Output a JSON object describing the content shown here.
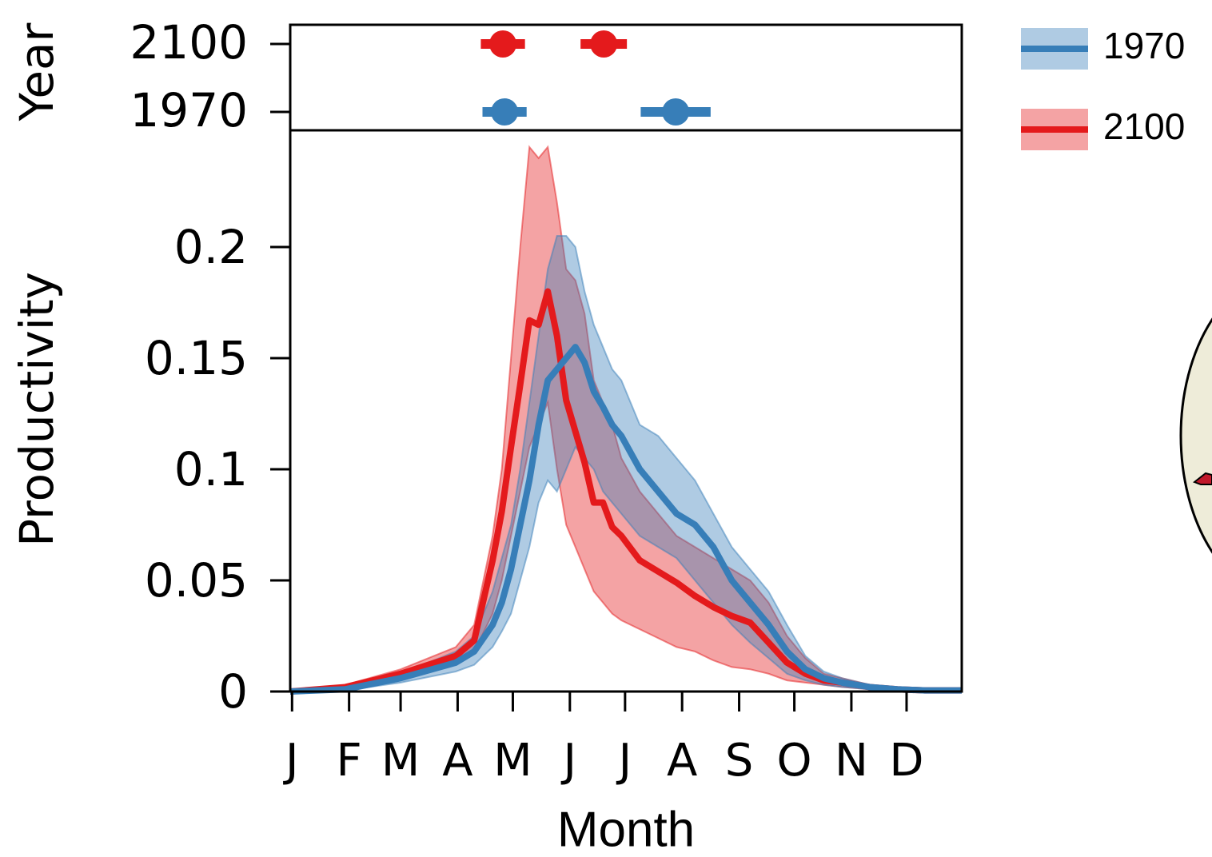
{
  "chart_data": [
    {
      "type": "dot",
      "ylabel": "Year",
      "categories": [
        "2100",
        "1970"
      ],
      "xlim": [
        0,
        365
      ],
      "series": [
        {
          "color": "#e41a1c",
          "values": [
            115.6,
            170.4
          ],
          "errors": [
            12,
            12.6
          ]
        },
        {
          "color": "#377eb8",
          "values": [
            116.5,
            209.5
          ],
          "errors": [
            12,
            19
          ]
        }
      ]
    },
    {
      "type": "line",
      "xlabel": "Month",
      "ylabel": "Productivity",
      "xlim": [
        0,
        365
      ],
      "ylim": [
        0,
        0.2525
      ],
      "xticks": [
        {
          "value": 1,
          "label": "J"
        },
        {
          "value": 32,
          "label": "F"
        },
        {
          "value": 60,
          "label": "M"
        },
        {
          "value": 91,
          "label": "A"
        },
        {
          "value": 121,
          "label": "M"
        },
        {
          "value": 152,
          "label": "J"
        },
        {
          "value": 182,
          "label": "J"
        },
        {
          "value": 213,
          "label": "A"
        },
        {
          "value": 244,
          "label": "S"
        },
        {
          "value": 274,
          "label": "O"
        },
        {
          "value": 305,
          "label": "N"
        },
        {
          "value": 335,
          "label": "D"
        }
      ],
      "yticks": [
        0,
        0.05,
        0.1,
        0.15,
        0.2
      ],
      "x": [
        0,
        30,
        60,
        90,
        100,
        110,
        115,
        120,
        125,
        130,
        135,
        140,
        145,
        150,
        155,
        160,
        165,
        170,
        175,
        180,
        190,
        200,
        210,
        220,
        230,
        240,
        250,
        260,
        270,
        280,
        290,
        300,
        315,
        330,
        345,
        365
      ],
      "series": [
        {
          "name": "2100",
          "color": "#e41a1c",
          "values": [
            0,
            0.002,
            0.008,
            0.016,
            0.023,
            0.059,
            0.081,
            0.11,
            0.138,
            0.167,
            0.165,
            0.18,
            0.16,
            0.131,
            0.117,
            0.103,
            0.085,
            0.085,
            0.074,
            0.07,
            0.059,
            0.054,
            0.049,
            0.043,
            0.038,
            0.034,
            0.031,
            0.022,
            0.013,
            0.008,
            0.005,
            0.004,
            0.002,
            0.001,
            0.0005,
            0.0005
          ],
          "upper": [
            0,
            0.003,
            0.01,
            0.02,
            0.03,
            0.07,
            0.1,
            0.15,
            0.2,
            0.245,
            0.24,
            0.245,
            0.22,
            0.19,
            0.185,
            0.17,
            0.14,
            0.13,
            0.12,
            0.105,
            0.09,
            0.08,
            0.07,
            0.065,
            0.06,
            0.055,
            0.05,
            0.04,
            0.025,
            0.015,
            0.008,
            0.006,
            0.003,
            0.0015,
            0.001,
            0.001
          ],
          "lower": [
            0,
            0.001,
            0.006,
            0.012,
            0.018,
            0.035,
            0.05,
            0.07,
            0.09,
            0.11,
            0.12,
            0.13,
            0.1,
            0.075,
            0.065,
            0.055,
            0.045,
            0.04,
            0.035,
            0.032,
            0.028,
            0.024,
            0.02,
            0.018,
            0.014,
            0.011,
            0.01,
            0.008,
            0.005,
            0.004,
            0.003,
            0.002,
            0.001,
            0.0005,
            0,
            0
          ]
        },
        {
          "name": "1970",
          "color": "#377eb8",
          "values": [
            0,
            0.001,
            0.006,
            0.013,
            0.018,
            0.03,
            0.04,
            0.055,
            0.075,
            0.095,
            0.12,
            0.14,
            0.145,
            0.15,
            0.155,
            0.148,
            0.135,
            0.128,
            0.12,
            0.115,
            0.1,
            0.09,
            0.08,
            0.075,
            0.065,
            0.05,
            0.04,
            0.03,
            0.018,
            0.01,
            0.006,
            0.004,
            0.002,
            0.001,
            0.0005,
            0.0005
          ],
          "upper": [
            0,
            0.002,
            0.008,
            0.018,
            0.025,
            0.045,
            0.06,
            0.075,
            0.1,
            0.13,
            0.16,
            0.19,
            0.205,
            0.205,
            0.2,
            0.18,
            0.165,
            0.155,
            0.145,
            0.14,
            0.12,
            0.115,
            0.105,
            0.095,
            0.08,
            0.065,
            0.055,
            0.045,
            0.03,
            0.016,
            0.009,
            0.006,
            0.003,
            0.0015,
            0.001,
            0.001
          ],
          "lower": [
            0,
            0.0005,
            0.004,
            0.009,
            0.012,
            0.02,
            0.027,
            0.035,
            0.05,
            0.065,
            0.085,
            0.095,
            0.09,
            0.1,
            0.11,
            0.105,
            0.1,
            0.09,
            0.085,
            0.08,
            0.07,
            0.065,
            0.06,
            0.05,
            0.04,
            0.03,
            0.022,
            0.015,
            0.008,
            0.005,
            0.003,
            0.002,
            0.001,
            0.0005,
            0,
            0
          ]
        }
      ]
    }
  ]
}
